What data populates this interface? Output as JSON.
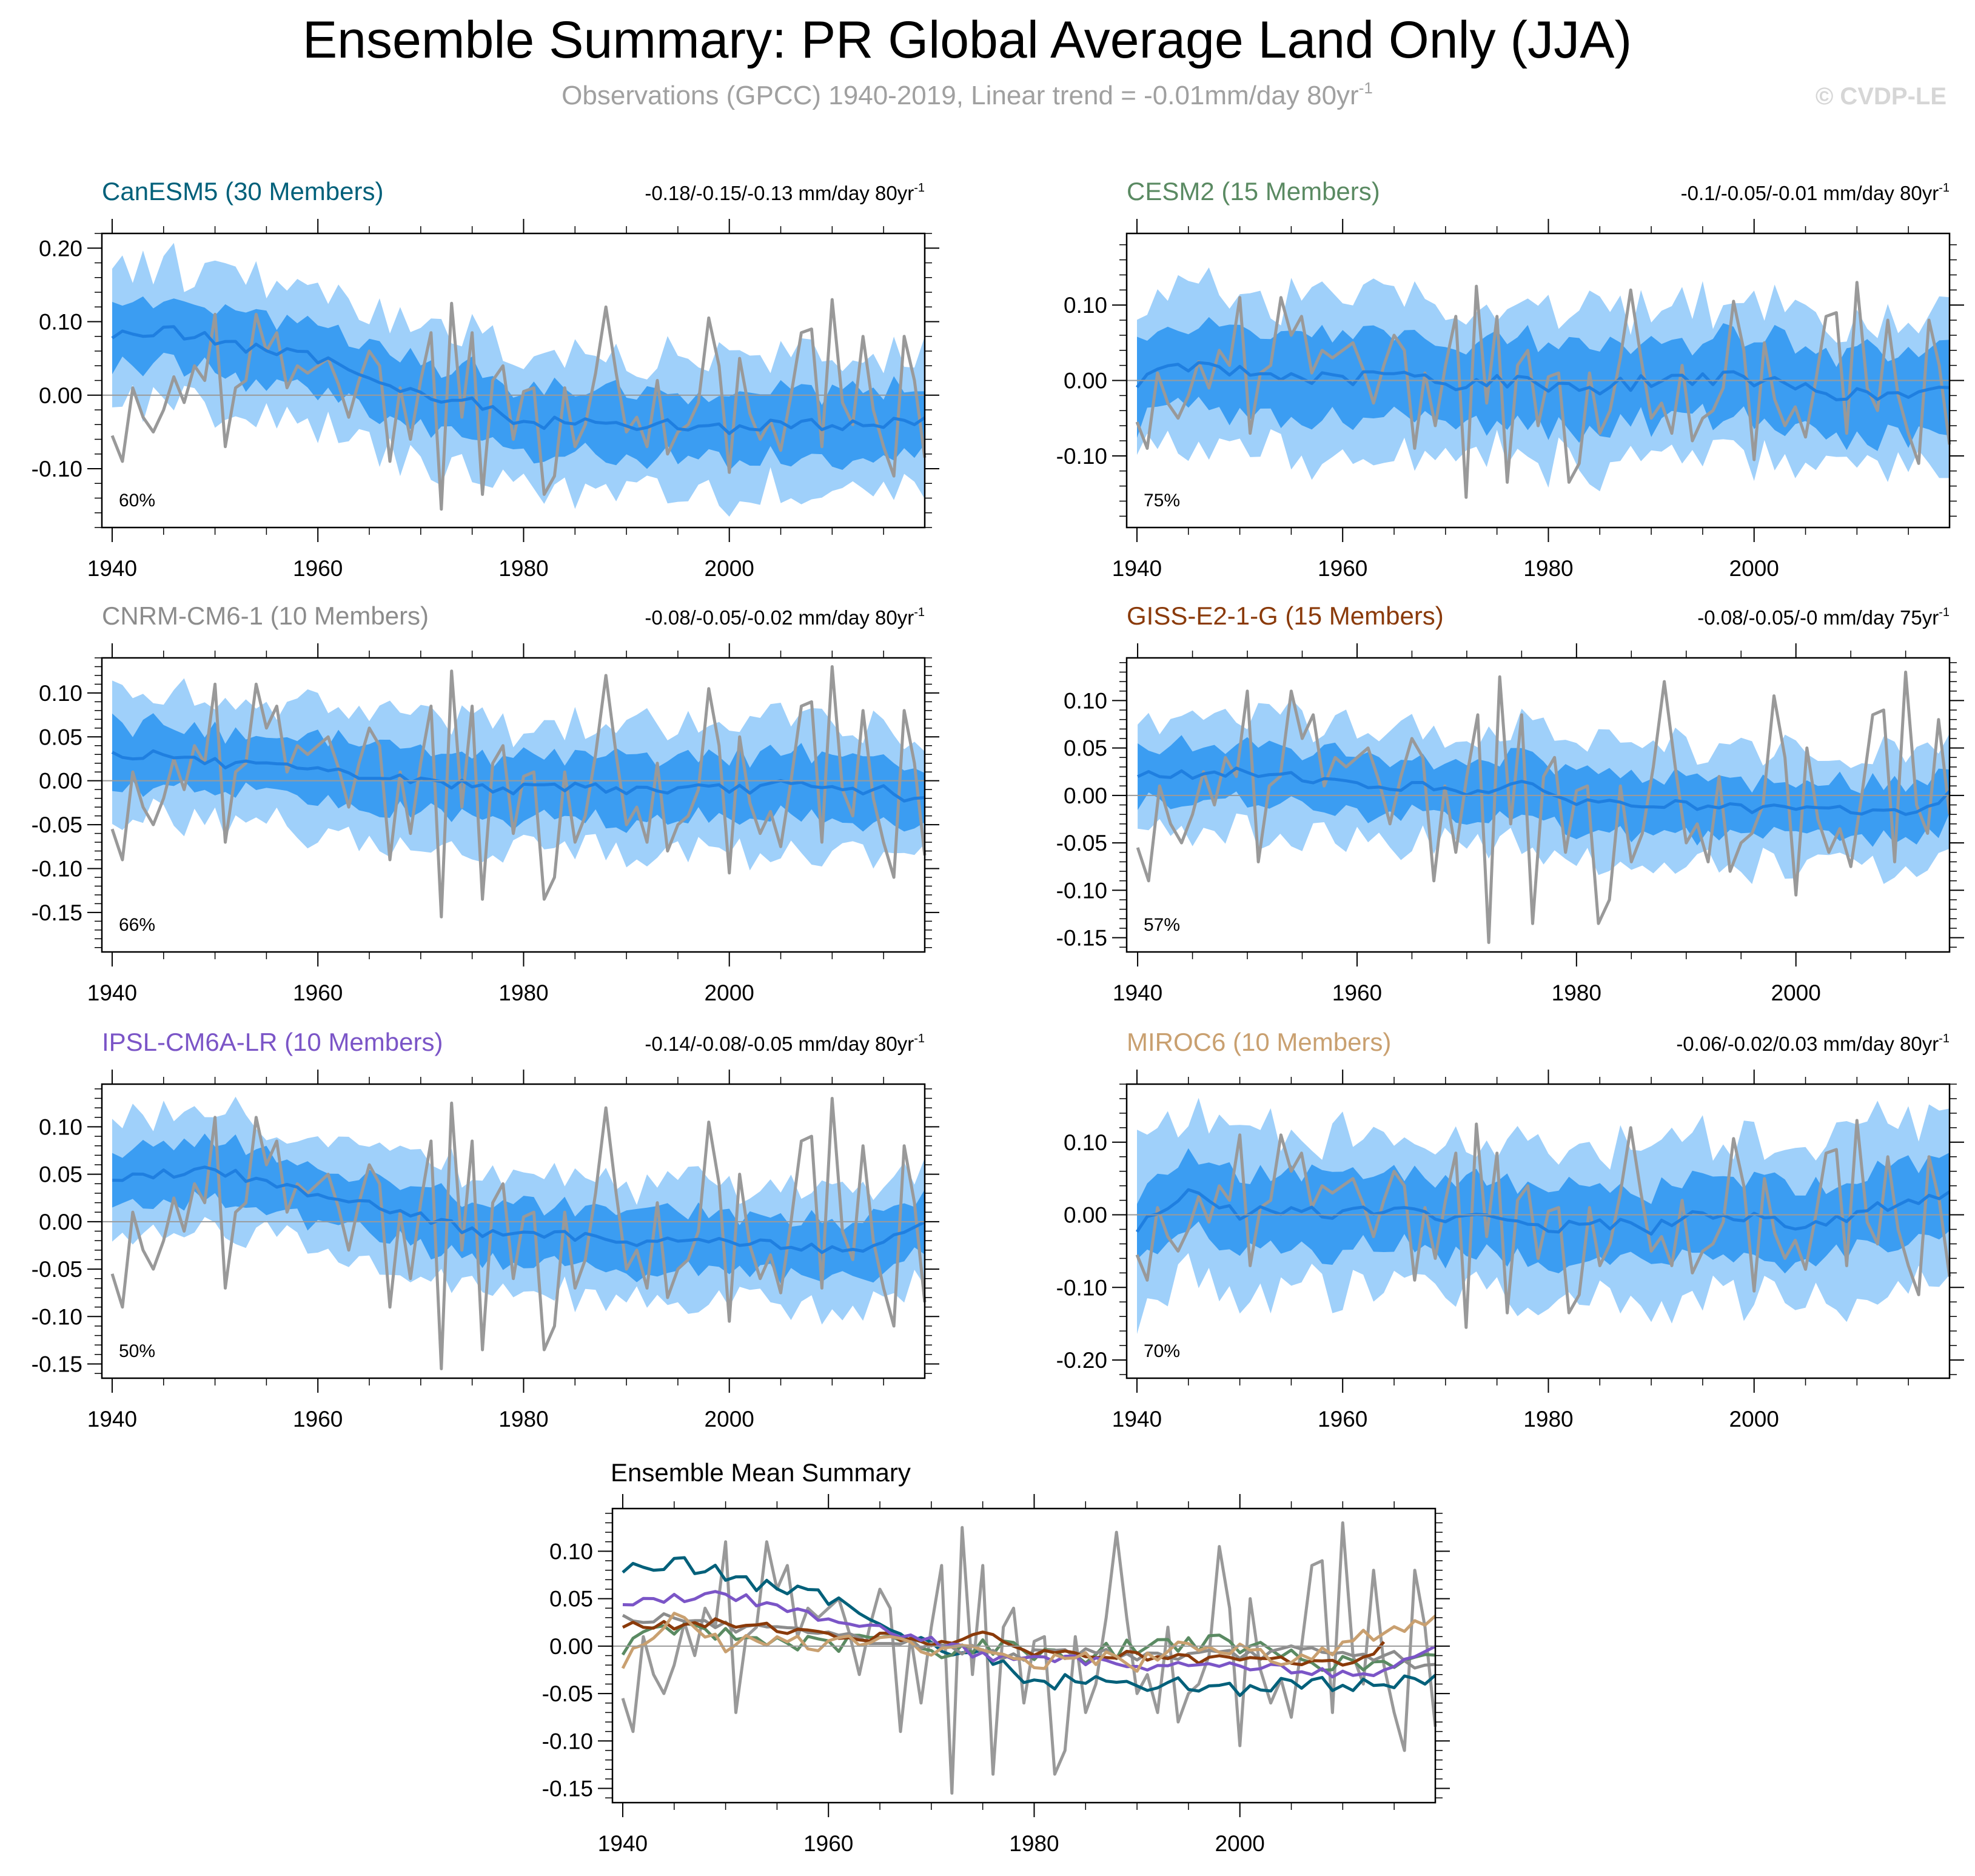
{
  "header": {
    "title": "Ensemble Summary: PR Global Average Land Only (JJA)",
    "subtitle": "Observations (GPCC) 1940-2019, Linear trend = -0.01mm/day 80yr",
    "subtitle_sup": "-1",
    "watermark": "© CVDP-LE"
  },
  "colors": {
    "band_outer": "#9fd0fa",
    "band_inner": "#3b9df2",
    "ensemble_mean": "#1f7fe0",
    "observations": "#999999"
  },
  "observations": {
    "name": "GPCC",
    "years": [
      1940,
      2019
    ],
    "values": [
      -0.055,
      -0.09,
      0.01,
      -0.03,
      -0.05,
      -0.02,
      0.025,
      -0.01,
      0.04,
      0.02,
      0.11,
      -0.07,
      0.01,
      0.02,
      0.11,
      0.06,
      0.085,
      0.01,
      0.04,
      0.03,
      0.04,
      0.05,
      0.015,
      -0.03,
      0.02,
      0.06,
      0.04,
      -0.09,
      0.01,
      -0.06,
      0.02,
      0.085,
      -0.155,
      0.125,
      -0.03,
      0.085,
      -0.135,
      0.02,
      0.04,
      -0.06,
      0.005,
      0.01,
      -0.135,
      -0.11,
      0.01,
      -0.07,
      -0.04,
      0.03,
      0.12,
      0.03,
      -0.05,
      -0.03,
      -0.07,
      0.02,
      -0.08,
      -0.05,
      -0.04,
      -0.01,
      0.105,
      0.04,
      -0.105,
      0.05,
      -0.025,
      -0.06,
      -0.035,
      -0.075,
      0.0,
      0.085,
      0.09,
      -0.07,
      0.13,
      -0.01,
      -0.04,
      0.08,
      -0.02,
      -0.07,
      -0.11,
      0.08,
      0.02,
      -0.085
    ]
  },
  "charts": [
    {
      "id": "canesm5",
      "title": "CanESM5 (30 Members)",
      "title_color": "#00607a",
      "trend_text": "-0.18/-0.15/-0.13 mm/day 80yr",
      "trend_sup": "-1",
      "pct_label": "60%",
      "y_ticks": [
        {
          "v": 0.2,
          "label": "0.20"
        },
        {
          "v": 0.1,
          "label": "0.10"
        },
        {
          "v": 0.0,
          "label": "0.00"
        },
        {
          "v": -0.1,
          "label": "-0.10"
        }
      ],
      "ylim": [
        -0.18,
        0.22
      ],
      "minor_step": 0.02,
      "x_ticks": [
        1940,
        1960,
        1980,
        2000
      ],
      "xlim": [
        1939,
        2019
      ],
      "end_year": 2019,
      "spread": 0.045,
      "spread_outer": 0.09,
      "mean_anchors": [
        [
          1940,
          0.08
        ],
        [
          1945,
          0.09
        ],
        [
          1950,
          0.075
        ],
        [
          1955,
          0.06
        ],
        [
          1960,
          0.05
        ],
        [
          1965,
          0.03
        ],
        [
          1970,
          0.0
        ],
        [
          1975,
          -0.01
        ],
        [
          1980,
          -0.04
        ],
        [
          1985,
          -0.035
        ],
        [
          1990,
          -0.04
        ],
        [
          1995,
          -0.04
        ],
        [
          2000,
          -0.045
        ],
        [
          2005,
          -0.04
        ],
        [
          2010,
          -0.04
        ],
        [
          2015,
          -0.04
        ],
        [
          2019,
          -0.03
        ]
      ]
    },
    {
      "id": "cesm2",
      "title": "CESM2 (15 Members)",
      "title_color": "#5a8a62",
      "trend_text": "-0.1/-0.05/-0.01 mm/day 80yr",
      "trend_sup": "-1",
      "pct_label": "75%",
      "y_ticks": [
        {
          "v": 0.1,
          "label": "0.10"
        },
        {
          "v": 0.0,
          "label": "0.00"
        },
        {
          "v": -0.1,
          "label": "-0.10"
        }
      ],
      "ylim": [
        -0.195,
        0.195
      ],
      "minor_step": 0.02,
      "x_ticks": [
        1940,
        1960,
        1980,
        2000
      ],
      "xlim": [
        1939,
        2019
      ],
      "end_year": 2019,
      "spread": 0.055,
      "spread_outer": 0.1,
      "mean_anchors": [
        [
          1940,
          0.0
        ],
        [
          1945,
          0.02
        ],
        [
          1950,
          0.01
        ],
        [
          1955,
          0.005
        ],
        [
          1960,
          0.0
        ],
        [
          1965,
          0.01
        ],
        [
          1970,
          -0.005
        ],
        [
          1975,
          0.0
        ],
        [
          1980,
          -0.005
        ],
        [
          1985,
          -0.01
        ],
        [
          1990,
          0.0
        ],
        [
          1995,
          0.005
        ],
        [
          2000,
          0.0
        ],
        [
          2005,
          -0.01
        ],
        [
          2010,
          -0.02
        ],
        [
          2015,
          -0.02
        ],
        [
          2019,
          -0.015
        ]
      ]
    },
    {
      "id": "cnrm",
      "title": "CNRM-CM6-1 (10 Members)",
      "title_color": "#8c8c8c",
      "trend_text": "-0.08/-0.05/-0.02 mm/day 80yr",
      "trend_sup": "-1",
      "pct_label": "66%",
      "y_ticks": [
        {
          "v": 0.1,
          "label": "0.10"
        },
        {
          "v": 0.05,
          "label": "0.05"
        },
        {
          "v": 0.0,
          "label": "0.00"
        },
        {
          "v": -0.05,
          "label": "-0.05"
        },
        {
          "v": -0.1,
          "label": "-0.10"
        },
        {
          "v": -0.15,
          "label": "-0.15"
        }
      ],
      "ylim": [
        -0.195,
        0.14
      ],
      "minor_step": 0.01,
      "x_ticks": [
        1940,
        1960,
        1980,
        2000
      ],
      "xlim": [
        1939,
        2019
      ],
      "end_year": 2019,
      "spread": 0.035,
      "spread_outer": 0.07,
      "mean_anchors": [
        [
          1940,
          0.03
        ],
        [
          1945,
          0.03
        ],
        [
          1950,
          0.02
        ],
        [
          1955,
          0.015
        ],
        [
          1960,
          0.01
        ],
        [
          1965,
          0.005
        ],
        [
          1970,
          0.0
        ],
        [
          1975,
          -0.005
        ],
        [
          1980,
          -0.01
        ],
        [
          1985,
          -0.005
        ],
        [
          1990,
          -0.01
        ],
        [
          1995,
          -0.01
        ],
        [
          2000,
          -0.01
        ],
        [
          2005,
          -0.005
        ],
        [
          2010,
          -0.01
        ],
        [
          2015,
          -0.01
        ],
        [
          2019,
          -0.025
        ]
      ]
    },
    {
      "id": "giss",
      "title": "GISS-E2-1-G (15 Members)",
      "title_color": "#8a3a0a",
      "trend_text": "-0.08/-0.05/-0 mm/day 75yr",
      "trend_sup": "-1",
      "pct_label": "57%",
      "y_ticks": [
        {
          "v": 0.1,
          "label": "0.10"
        },
        {
          "v": 0.05,
          "label": "0.05"
        },
        {
          "v": 0.0,
          "label": "0.00"
        },
        {
          "v": -0.05,
          "label": "-0.05"
        },
        {
          "v": -0.1,
          "label": "-0.10"
        },
        {
          "v": -0.15,
          "label": "-0.15"
        }
      ],
      "ylim": [
        -0.165,
        0.145
      ],
      "minor_step": 0.01,
      "x_ticks": [
        1940,
        1960,
        1980,
        2000
      ],
      "xlim": [
        1939,
        2014
      ],
      "end_year": 2014,
      "spread": 0.03,
      "spread_outer": 0.06,
      "mean_anchors": [
        [
          1940,
          0.025
        ],
        [
          1945,
          0.02
        ],
        [
          1950,
          0.025
        ],
        [
          1955,
          0.02
        ],
        [
          1960,
          0.01
        ],
        [
          1965,
          0.01
        ],
        [
          1970,
          0.005
        ],
        [
          1975,
          0.01
        ],
        [
          1980,
          -0.005
        ],
        [
          1985,
          -0.01
        ],
        [
          1990,
          -0.01
        ],
        [
          1995,
          -0.015
        ],
        [
          2000,
          -0.015
        ],
        [
          2005,
          -0.015
        ],
        [
          2010,
          -0.02
        ],
        [
          2014,
          0.0
        ]
      ]
    },
    {
      "id": "ipsl",
      "title": "IPSL-CM6A-LR (10 Members)",
      "title_color": "#7b55c7",
      "trend_text": "-0.14/-0.08/-0.05 mm/day 80yr",
      "trend_sup": "-1",
      "pct_label": "50%",
      "y_ticks": [
        {
          "v": 0.1,
          "label": "0.10"
        },
        {
          "v": 0.05,
          "label": "0.05"
        },
        {
          "v": 0.0,
          "label": "0.00"
        },
        {
          "v": -0.05,
          "label": "-0.05"
        },
        {
          "v": -0.1,
          "label": "-0.10"
        },
        {
          "v": -0.15,
          "label": "-0.15"
        }
      ],
      "ylim": [
        -0.165,
        0.145
      ],
      "minor_step": 0.01,
      "x_ticks": [
        1940,
        1960,
        1980,
        2000
      ],
      "xlim": [
        1939,
        2019
      ],
      "end_year": 2019,
      "spread": 0.03,
      "spread_outer": 0.06,
      "mean_anchors": [
        [
          1940,
          0.045
        ],
        [
          1945,
          0.05
        ],
        [
          1950,
          0.055
        ],
        [
          1955,
          0.04
        ],
        [
          1960,
          0.03
        ],
        [
          1965,
          0.02
        ],
        [
          1970,
          0.005
        ],
        [
          1975,
          -0.01
        ],
        [
          1980,
          -0.015
        ],
        [
          1985,
          -0.015
        ],
        [
          1990,
          -0.02
        ],
        [
          1995,
          -0.02
        ],
        [
          2000,
          -0.02
        ],
        [
          2005,
          -0.025
        ],
        [
          2010,
          -0.03
        ],
        [
          2015,
          -0.025
        ],
        [
          2019,
          0.0
        ]
      ]
    },
    {
      "id": "miroc6",
      "title": "MIROC6 (10 Members)",
      "title_color": "#c9a070",
      "trend_text": "-0.06/-0.02/0.03 mm/day 80yr",
      "trend_sup": "-1",
      "pct_label": "70%",
      "y_ticks": [
        {
          "v": 0.1,
          "label": "0.10"
        },
        {
          "v": 0.0,
          "label": "0.00"
        },
        {
          "v": -0.1,
          "label": "-0.10"
        },
        {
          "v": -0.2,
          "label": "-0.20"
        }
      ],
      "ylim": [
        -0.225,
        0.18
      ],
      "minor_step": 0.02,
      "x_ticks": [
        1940,
        1960,
        1980,
        2000
      ],
      "xlim": [
        1939,
        2019
      ],
      "end_year": 2019,
      "spread": 0.05,
      "spread_outer": 0.11,
      "mean_anchors": [
        [
          1940,
          -0.02
        ],
        [
          1945,
          0.03
        ],
        [
          1950,
          0.0
        ],
        [
          1955,
          0.01
        ],
        [
          1960,
          0.0
        ],
        [
          1965,
          0.01
        ],
        [
          1970,
          -0.01
        ],
        [
          1975,
          0.0
        ],
        [
          1980,
          -0.02
        ],
        [
          1985,
          -0.01
        ],
        [
          1990,
          -0.02
        ],
        [
          1995,
          0.0
        ],
        [
          2000,
          0.0
        ],
        [
          2005,
          -0.015
        ],
        [
          2010,
          0.0
        ],
        [
          2015,
          0.02
        ],
        [
          2019,
          0.03
        ]
      ]
    }
  ],
  "summary": {
    "title": "Ensemble Mean Summary",
    "y_ticks": [
      {
        "v": 0.1,
        "label": "0.10"
      },
      {
        "v": 0.05,
        "label": "0.05"
      },
      {
        "v": 0.0,
        "label": "0.00"
      },
      {
        "v": -0.05,
        "label": "-0.05"
      },
      {
        "v": -0.1,
        "label": "-0.10"
      },
      {
        "v": -0.15,
        "label": "-0.15"
      }
    ],
    "ylim": [
      -0.165,
      0.145
    ],
    "minor_step": 0.01,
    "x_ticks": [
      1940,
      1960,
      1980,
      2000
    ],
    "xlim": [
      1939,
      2019
    ]
  },
  "chart_data": [
    {
      "type": "area",
      "title": "CanESM5 (30 Members)",
      "x_range": [
        1940,
        2019
      ],
      "ylim": [
        -0.18,
        0.22
      ],
      "series": [
        {
          "name": "ensemble mean",
          "values_anchor": [
            [
              1940,
              0.08
            ],
            [
              1960,
              0.05
            ],
            [
              1980,
              -0.04
            ],
            [
              2000,
              -0.045
            ],
            [
              2019,
              -0.03
            ]
          ]
        },
        {
          "name": "observations (GPCC)"
        }
      ]
    },
    {
      "type": "area",
      "title": "CESM2 (15 Members)",
      "x_range": [
        1940,
        2019
      ],
      "ylim": [
        -0.195,
        0.195
      ]
    },
    {
      "type": "area",
      "title": "CNRM-CM6-1 (10 Members)",
      "x_range": [
        1940,
        2019
      ],
      "ylim": [
        -0.195,
        0.14
      ]
    },
    {
      "type": "area",
      "title": "GISS-E2-1-G (15 Members)",
      "x_range": [
        1940,
        2014
      ],
      "ylim": [
        -0.165,
        0.145
      ]
    },
    {
      "type": "area",
      "title": "IPSL-CM6A-LR (10 Members)",
      "x_range": [
        1940,
        2019
      ],
      "ylim": [
        -0.165,
        0.145
      ]
    },
    {
      "type": "area",
      "title": "MIROC6 (10 Members)",
      "x_range": [
        1940,
        2019
      ],
      "ylim": [
        -0.225,
        0.18
      ]
    },
    {
      "type": "line",
      "title": "Ensemble Mean Summary",
      "x_range": [
        1940,
        2019
      ],
      "ylim": [
        -0.165,
        0.145
      ],
      "series": [
        "CanESM5",
        "CESM2",
        "CNRM-CM6-1",
        "GISS-E2-1-G",
        "IPSL-CM6A-LR",
        "MIROC6",
        "GPCC"
      ]
    }
  ]
}
